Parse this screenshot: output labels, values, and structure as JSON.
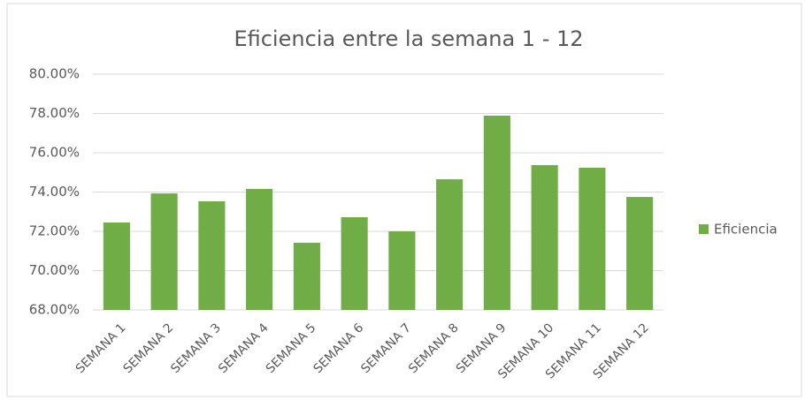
{
  "chart_data": {
    "type": "bar",
    "title": "Eficiencia entre la semana 1 - 12",
    "categories": [
      "SEMANA 1",
      "SEMANA 2",
      "SEMANA 3",
      "SEMANA 4",
      "SEMANA 5",
      "SEMANA 6",
      "SEMANA 7",
      "SEMANA 8",
      "SEMANA 9",
      "SEMANA 10",
      "SEMANA 11",
      "SEMANA 12"
    ],
    "series": [
      {
        "name": "Eficiencia",
        "color": "#70ad47",
        "values": [
          72.45,
          73.93,
          73.53,
          74.16,
          71.42,
          72.72,
          72.0,
          74.65,
          77.89,
          75.37,
          75.24,
          73.75
        ]
      }
    ],
    "ylim": [
      68,
      80
    ],
    "yticks": [
      {
        "value": 68,
        "label": "68.00%"
      },
      {
        "value": 70,
        "label": "70.00%"
      },
      {
        "value": 72,
        "label": "72.00%"
      },
      {
        "value": 74,
        "label": "74.00%"
      },
      {
        "value": 76,
        "label": "76.00%"
      },
      {
        "value": 78,
        "label": "78.00%"
      },
      {
        "value": 80,
        "label": "80.00%"
      }
    ],
    "grid": true,
    "legend": "right"
  }
}
